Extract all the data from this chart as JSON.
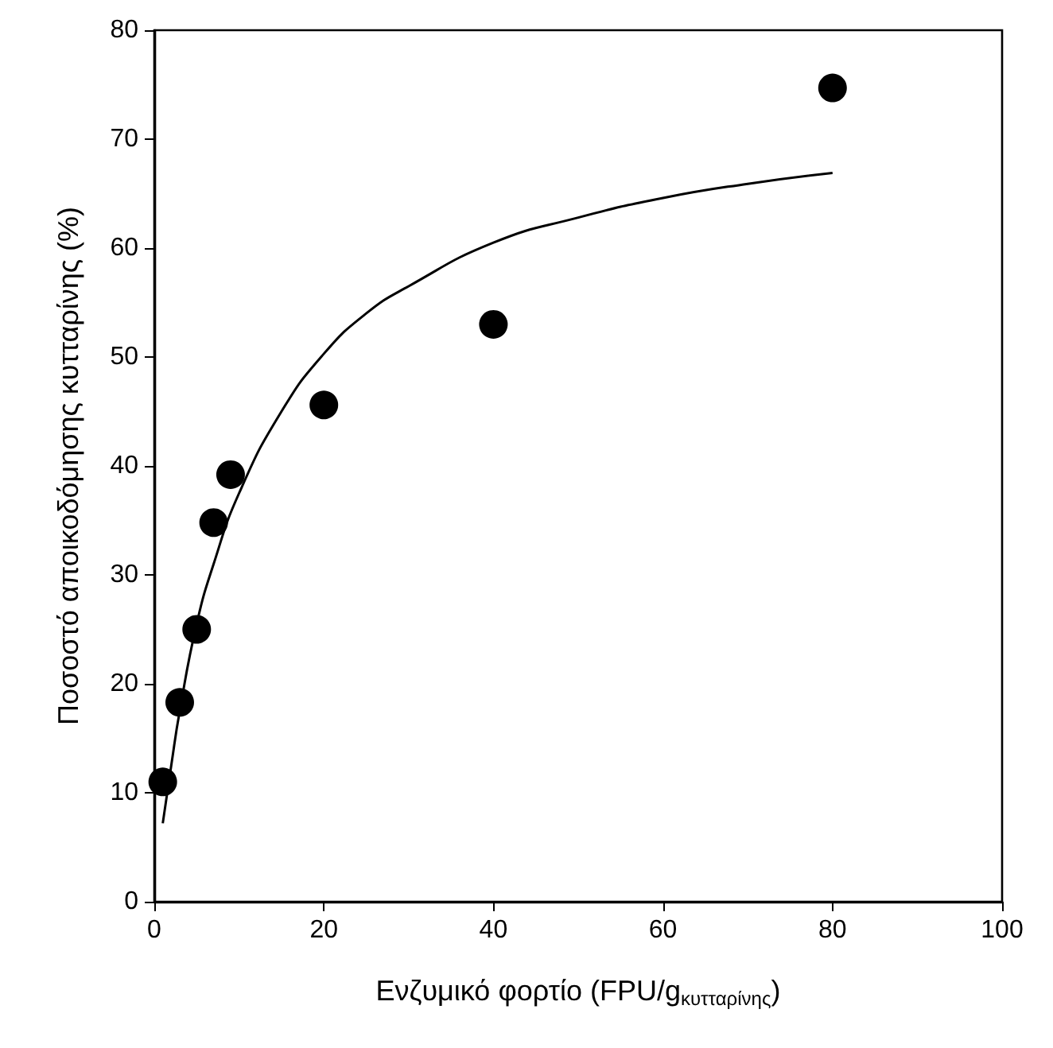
{
  "chart_data": {
    "type": "scatter",
    "xlabel": "Ενζυμικό φορτίο (FPU/g$_{κυτταρίνης}$)",
    "ylabel": "Ποσοστό αποικοδόμησης κυτταρίνης (%)",
    "xlim": [
      0,
      100
    ],
    "xticks": [
      0,
      20,
      40,
      60,
      80,
      100
    ],
    "ylim": [
      0,
      80
    ],
    "yticks": [
      0,
      10,
      20,
      30,
      40,
      50,
      60,
      70,
      80
    ],
    "grid": false,
    "series": [
      {
        "color": "#000000",
        "marker": "circle",
        "x": [
          1,
          3,
          5,
          7,
          9,
          20,
          40,
          80
        ],
        "values": [
          11,
          18.3,
          25,
          34.8,
          39.2,
          45.6,
          53,
          74.7
        ]
      },
      {
        "type": "line",
        "color": "#000000",
        "marker": "none",
        "line_style": "solid",
        "x": [
          1,
          2,
          3,
          5,
          7,
          10,
          15,
          20,
          25,
          30,
          40,
          50,
          60,
          70,
          80
        ],
        "values": [
          7.2,
          12.5,
          17.5,
          25.5,
          31,
          37.5,
          45,
          50.3,
          54,
          56.5,
          60.5,
          62.8,
          64.6,
          65.9,
          66.9
        ]
      }
    ]
  }
}
